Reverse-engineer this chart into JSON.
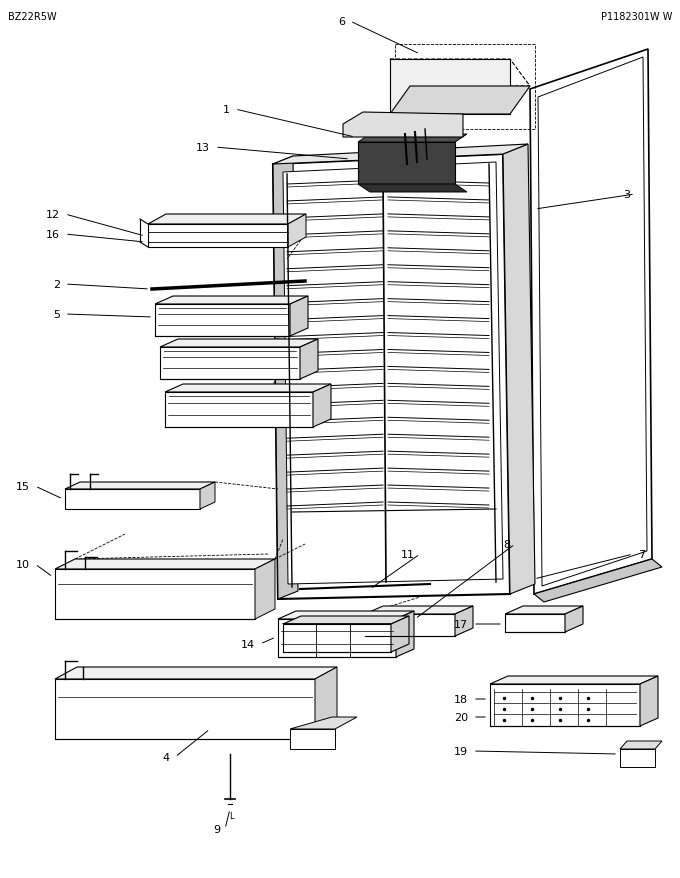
{
  "background_color": "#ffffff",
  "line_color": "#000000",
  "header_left": "BZ22R5W",
  "header_right": "P1182301W W"
}
